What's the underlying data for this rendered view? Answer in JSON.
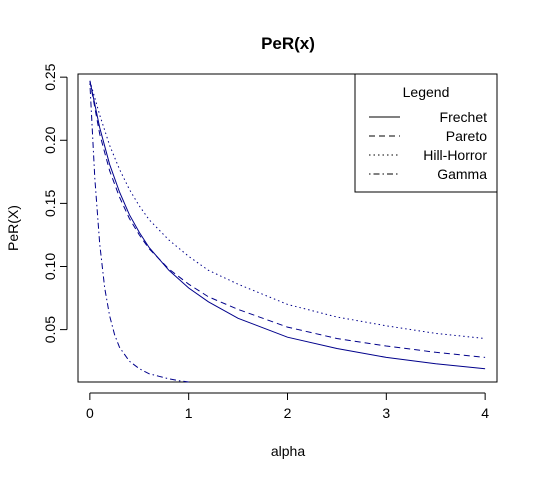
{
  "chart_data": {
    "type": "line",
    "title": "PeR(x)",
    "xlabel": "alpha",
    "ylabel": "PeR(X)",
    "xlim": [
      -0.12,
      4.12
    ],
    "ylim": [
      0.0085,
      0.2525
    ],
    "x_ticks": [
      0,
      1,
      2,
      3,
      4
    ],
    "x_tick_labels": [
      "0",
      "1",
      "2",
      "3",
      "4"
    ],
    "y_ticks": [
      0.05,
      0.1,
      0.15,
      0.2,
      0.25
    ],
    "y_tick_labels": [
      "0.05",
      "0.10",
      "0.15",
      "0.20",
      "0.25"
    ],
    "grid": false,
    "legend": {
      "title": "Legend",
      "position": "top-right",
      "entries": [
        "Frechet",
        "Pareto",
        "Hill-Horror",
        "Gamma"
      ]
    },
    "series": [
      {
        "name": "Frechet",
        "line_style": "solid",
        "color": "#00008b",
        "x": [
          0.0,
          0.1,
          0.2,
          0.3,
          0.4,
          0.5,
          0.6,
          0.8,
          1.0,
          1.2,
          1.5,
          2.0,
          2.5,
          3.0,
          3.5,
          4.0
        ],
        "y": [
          0.247,
          0.21,
          0.181,
          0.159,
          0.141,
          0.127,
          0.115,
          0.097,
          0.083,
          0.072,
          0.059,
          0.044,
          0.035,
          0.028,
          0.023,
          0.019
        ]
      },
      {
        "name": "Pareto",
        "line_style": "dashed",
        "color": "#00008b",
        "x": [
          0.0,
          0.1,
          0.2,
          0.3,
          0.4,
          0.5,
          0.6,
          0.8,
          1.0,
          1.2,
          1.5,
          2.0,
          2.5,
          3.0,
          3.5,
          4.0
        ],
        "y": [
          0.247,
          0.205,
          0.176,
          0.155,
          0.138,
          0.125,
          0.114,
          0.098,
          0.086,
          0.076,
          0.066,
          0.052,
          0.043,
          0.037,
          0.032,
          0.028
        ]
      },
      {
        "name": "Hill-Horror",
        "line_style": "dotted",
        "color": "#00008b",
        "x": [
          0.0,
          0.1,
          0.2,
          0.3,
          0.4,
          0.5,
          0.6,
          0.8,
          1.0,
          1.2,
          1.5,
          2.0,
          2.5,
          3.0,
          3.5,
          4.0
        ],
        "y": [
          0.247,
          0.22,
          0.196,
          0.177,
          0.161,
          0.148,
          0.137,
          0.121,
          0.108,
          0.097,
          0.086,
          0.07,
          0.06,
          0.053,
          0.047,
          0.043
        ]
      },
      {
        "name": "Gamma",
        "line_style": "dotdash",
        "color": "#00008b",
        "x": [
          0.0,
          0.05,
          0.1,
          0.15,
          0.2,
          0.25,
          0.3,
          0.4,
          0.5,
          0.6,
          0.7,
          0.8,
          0.9,
          1.0
        ],
        "y": [
          0.245,
          0.17,
          0.118,
          0.083,
          0.061,
          0.046,
          0.036,
          0.025,
          0.019,
          0.015,
          0.013,
          0.011,
          0.0095,
          0.0085
        ]
      }
    ]
  }
}
